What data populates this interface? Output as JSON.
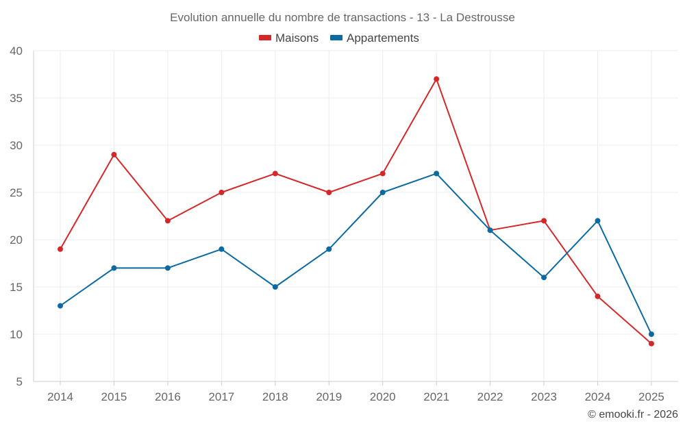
{
  "chart_data": {
    "type": "line",
    "title": "Evolution annuelle du nombre de transactions - 13 - La Destrousse",
    "categories": [
      "2014",
      "2015",
      "2016",
      "2017",
      "2018",
      "2019",
      "2020",
      "2021",
      "2022",
      "2023",
      "2024",
      "2025"
    ],
    "series": [
      {
        "name": "Maisons",
        "color": "#d62728",
        "values": [
          19,
          29,
          22,
          25,
          27,
          25,
          27,
          37,
          21,
          22,
          14,
          9
        ]
      },
      {
        "name": "Appartements",
        "color": "#0b6aa2",
        "values": [
          13,
          17,
          17,
          19,
          15,
          19,
          25,
          27,
          21,
          16,
          22,
          10
        ]
      }
    ],
    "ylim": [
      5,
      40
    ],
    "yticks": [
      "5",
      "10",
      "15",
      "20",
      "25",
      "30",
      "35",
      "40"
    ],
    "grid": true,
    "legend": "top-center",
    "xlabel": "",
    "ylabel": ""
  },
  "credit": "© emooki.fr - 2026"
}
